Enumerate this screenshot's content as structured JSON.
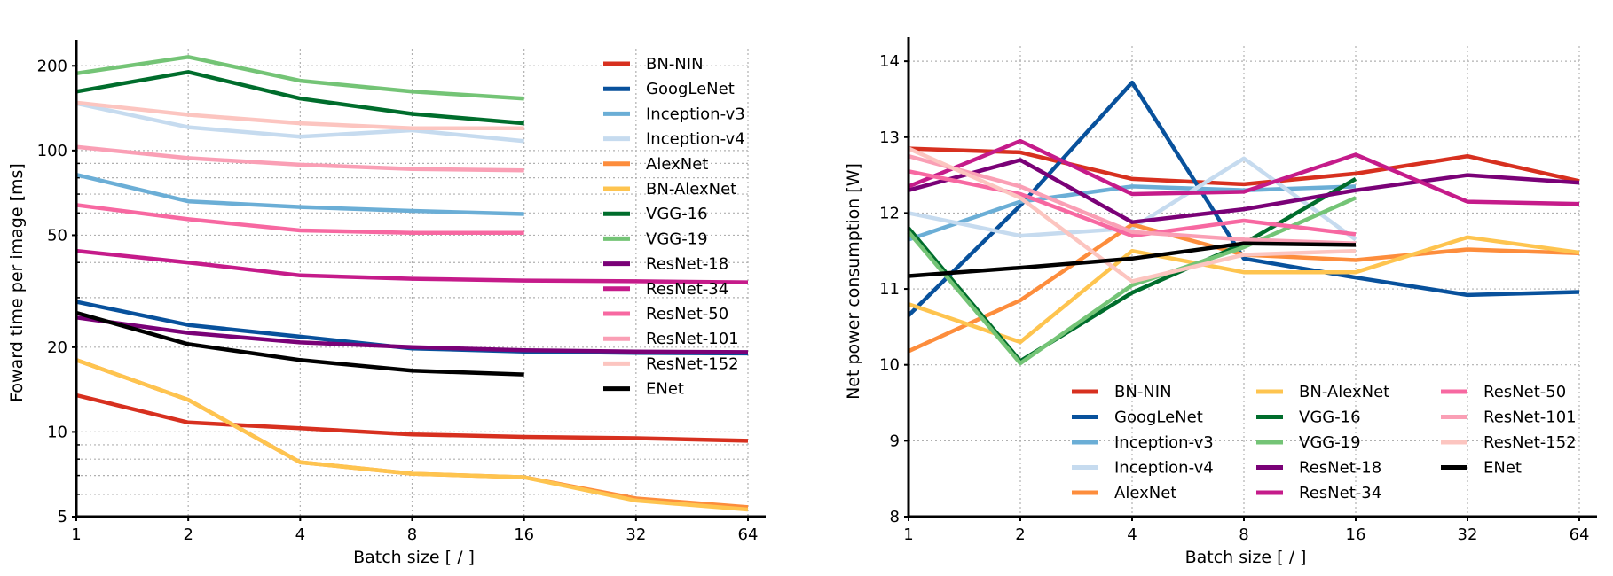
{
  "series_styles": [
    {
      "name": "BN-NIN",
      "color": "#d7301f"
    },
    {
      "name": "GoogLeNet",
      "color": "#08519c"
    },
    {
      "name": "Inception-v3",
      "color": "#6baed6"
    },
    {
      "name": "Inception-v4",
      "color": "#c6dbef"
    },
    {
      "name": "AlexNet",
      "color": "#fd8d3c"
    },
    {
      "name": "BN-AlexNet",
      "color": "#fec44f"
    },
    {
      "name": "VGG-16",
      "color": "#006d2c"
    },
    {
      "name": "VGG-19",
      "color": "#74c476"
    },
    {
      "name": "ResNet-18",
      "color": "#7a0177"
    },
    {
      "name": "ResNet-34",
      "color": "#c51b8a"
    },
    {
      "name": "ResNet-50",
      "color": "#f768a1"
    },
    {
      "name": "ResNet-101",
      "color": "#fa9fb5"
    },
    {
      "name": "ResNet-152",
      "color": "#fcc5c0"
    },
    {
      "name": "ENet",
      "color": "#000000"
    }
  ],
  "chart_data": [
    {
      "type": "line",
      "xlabel": "Batch size [ / ]",
      "ylabel": "Foward time per image [ms]",
      "xscale": "log2",
      "yscale": "log",
      "x": [
        1,
        2,
        4,
        8,
        16,
        32,
        64
      ],
      "x_tick_labels": [
        "1",
        "2",
        "4",
        "8",
        "16",
        "32",
        "64"
      ],
      "y_ticks": [
        5,
        10,
        20,
        50,
        100,
        200
      ],
      "y_tick_labels": [
        "5",
        "10",
        "20",
        "50",
        "100",
        "200"
      ],
      "ylim": [
        5,
        230
      ],
      "grid": true,
      "legend": "top-right",
      "series": [
        {
          "name": "BN-NIN",
          "values": [
            13.5,
            10.8,
            10.3,
            9.8,
            9.6,
            9.5,
            9.3
          ]
        },
        {
          "name": "GoogLeNet",
          "values": [
            29,
            24,
            21.8,
            19.8,
            19.3,
            19.1,
            19.0
          ]
        },
        {
          "name": "Inception-v3",
          "values": [
            82,
            66,
            63,
            61,
            59.5,
            null,
            null
          ]
        },
        {
          "name": "Inception-v4",
          "values": [
            147,
            121,
            112,
            118,
            108,
            null,
            null
          ]
        },
        {
          "name": "AlexNet",
          "values": [
            18.0,
            13.0,
            7.8,
            7.1,
            6.9,
            5.8,
            5.4
          ]
        },
        {
          "name": "BN-AlexNet",
          "values": [
            18.0,
            13.0,
            7.8,
            7.1,
            6.9,
            5.7,
            5.3
          ]
        },
        {
          "name": "VGG-16",
          "values": [
            162,
            190,
            153,
            135,
            125,
            null,
            null
          ]
        },
        {
          "name": "VGG-19",
          "values": [
            188,
            215,
            177,
            162,
            153,
            null,
            null
          ]
        },
        {
          "name": "ResNet-18",
          "values": [
            25.5,
            22.5,
            20.8,
            20.0,
            19.5,
            19.3,
            19.2
          ]
        },
        {
          "name": "ResNet-34",
          "values": [
            44,
            40,
            36,
            35,
            34.5,
            34.3,
            34.0
          ]
        },
        {
          "name": "ResNet-50",
          "values": [
            64,
            57,
            52,
            51,
            51,
            null,
            null
          ]
        },
        {
          "name": "ResNet-101",
          "values": [
            103,
            94,
            89,
            86,
            85,
            null,
            null
          ]
        },
        {
          "name": "ResNet-152",
          "values": [
            148,
            134,
            125,
            120,
            120,
            null,
            null
          ]
        },
        {
          "name": "ENet",
          "values": [
            26.5,
            20.5,
            18,
            16.5,
            16,
            null,
            null
          ]
        }
      ]
    },
    {
      "type": "line",
      "xlabel": "Batch size [ / ]",
      "ylabel": "Net power consumption [W]",
      "xscale": "log2",
      "yscale": "linear",
      "x": [
        1,
        2,
        4,
        8,
        16,
        32,
        64
      ],
      "x_tick_labels": [
        "1",
        "2",
        "4",
        "8",
        "16",
        "32",
        "64"
      ],
      "y_ticks": [
        8,
        9,
        10,
        11,
        12,
        13,
        14
      ],
      "y_tick_labels": [
        "8",
        "9",
        "10",
        "11",
        "12",
        "13",
        "14"
      ],
      "ylim": [
        8,
        14.2
      ],
      "grid": true,
      "legend": "lower-right, 3 columns",
      "series": [
        {
          "name": "BN-NIN",
          "values": [
            12.85,
            12.8,
            12.45,
            12.38,
            12.52,
            12.75,
            12.42
          ]
        },
        {
          "name": "GoogLeNet",
          "values": [
            10.65,
            12.1,
            13.72,
            11.4,
            11.15,
            10.92,
            10.96
          ]
        },
        {
          "name": "Inception-v3",
          "values": [
            11.65,
            12.15,
            12.35,
            12.3,
            12.35,
            null,
            null
          ]
        },
        {
          "name": "Inception-v4",
          "values": [
            12.0,
            11.7,
            11.8,
            12.72,
            11.65,
            null,
            null
          ]
        },
        {
          "name": "AlexNet",
          "values": [
            10.18,
            10.85,
            11.85,
            11.45,
            11.38,
            11.52,
            11.47
          ]
        },
        {
          "name": "BN-AlexNet",
          "values": [
            10.8,
            10.3,
            11.5,
            11.22,
            11.22,
            11.68,
            11.48
          ]
        },
        {
          "name": "VGG-16",
          "values": [
            11.8,
            10.05,
            10.95,
            11.6,
            12.45,
            null,
            null
          ]
        },
        {
          "name": "VGG-19",
          "values": [
            11.75,
            10.02,
            11.05,
            11.55,
            12.2,
            null,
            null
          ]
        },
        {
          "name": "ResNet-18",
          "values": [
            12.3,
            12.7,
            11.88,
            12.05,
            12.3,
            12.5,
            12.4
          ]
        },
        {
          "name": "ResNet-34",
          "values": [
            12.35,
            12.95,
            12.25,
            12.28,
            12.77,
            12.15,
            12.12
          ]
        },
        {
          "name": "ResNet-50",
          "values": [
            12.55,
            12.25,
            11.7,
            11.9,
            11.72,
            null,
            null
          ]
        },
        {
          "name": "ResNet-101",
          "values": [
            12.75,
            12.35,
            11.75,
            11.65,
            11.6,
            null,
            null
          ]
        },
        {
          "name": "ResNet-152",
          "values": [
            12.85,
            12.2,
            11.1,
            11.45,
            11.5,
            null,
            null
          ]
        },
        {
          "name": "ENet",
          "values": [
            11.17,
            11.28,
            11.4,
            11.6,
            11.58,
            null,
            null
          ]
        }
      ]
    }
  ]
}
